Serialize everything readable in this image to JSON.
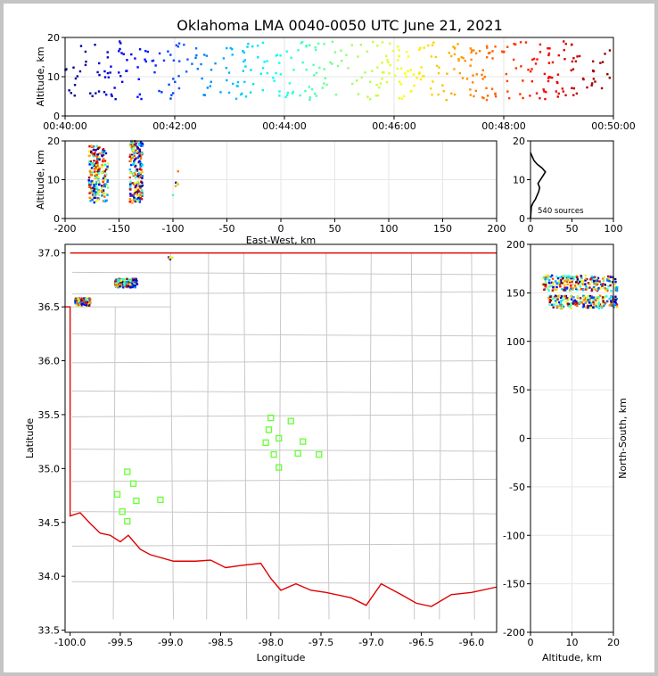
{
  "title": "Oklahoma LMA 0040-0050 UTC June 21, 2021",
  "source_count_label": "540 sources",
  "chart_data": [
    {
      "id": "time_height",
      "type": "scatter",
      "xlabel": "",
      "ylabel": "Altitude, km",
      "xlim_minutes": [
        40,
        50
      ],
      "ylim": [
        0,
        20
      ],
      "x_ticks": [
        "00:40:00",
        "00:42:00",
        "00:44:00",
        "00:46:00",
        "00:48:00",
        "00:50:00"
      ],
      "y_ticks": [
        0,
        10,
        20
      ],
      "color_encoding": "time"
    },
    {
      "id": "east_west_height",
      "type": "scatter",
      "xlabel": "East-West, km",
      "ylabel": "Altitude, km",
      "xlim": [
        -200,
        200
      ],
      "ylim": [
        0,
        20
      ],
      "x_ticks": [
        -200,
        -150,
        -100,
        -50,
        0,
        50,
        100,
        150,
        200
      ],
      "y_ticks": [
        0,
        10,
        20
      ],
      "clusters": [
        {
          "x_range": [
            -178,
            -168
          ],
          "alt_range": [
            4,
            19
          ]
        },
        {
          "x_range": [
            -166,
            -160
          ],
          "alt_range": [
            4,
            18
          ]
        },
        {
          "x_range": [
            -140,
            -128
          ],
          "alt_range": [
            4,
            20
          ]
        },
        {
          "x_range": [
            -100,
            -95
          ],
          "alt_range": [
            6,
            14
          ]
        }
      ]
    },
    {
      "id": "altitude_histogram",
      "type": "line",
      "xlim": [
        0,
        100
      ],
      "ylim": [
        0,
        20
      ],
      "x_ticks": [
        0,
        50,
        100
      ],
      "y_ticks": [
        0,
        10,
        20
      ],
      "profile": [
        [
          0,
          0
        ],
        [
          1,
          3
        ],
        [
          3,
          4
        ],
        [
          6,
          5
        ],
        [
          8,
          6
        ],
        [
          10,
          7
        ],
        [
          11,
          8
        ],
        [
          9,
          9
        ],
        [
          12,
          10
        ],
        [
          15,
          11
        ],
        [
          18,
          12
        ],
        [
          14,
          13
        ],
        [
          8,
          14
        ],
        [
          4,
          15
        ],
        [
          2,
          16
        ],
        [
          0,
          17
        ]
      ]
    },
    {
      "id": "plan_view",
      "type": "scatter",
      "xlabel": "Longitude",
      "ylabel": "Latitude",
      "xlim": [
        -100.05,
        -95.75
      ],
      "ylim": [
        33.48,
        37.08
      ],
      "x_ticks": [
        -100.0,
        -99.5,
        -99.0,
        -98.5,
        -98.0,
        -97.5,
        -97.0,
        -96.5,
        -96.0
      ],
      "y_ticks": [
        33.5,
        34.0,
        34.5,
        35.0,
        35.5,
        36.0,
        36.5,
        37.0
      ],
      "stations": [
        [
          -98.0,
          35.47
        ],
        [
          -97.8,
          35.44
        ],
        [
          -98.02,
          35.36
        ],
        [
          -97.92,
          35.28
        ],
        [
          -98.05,
          35.24
        ],
        [
          -97.68,
          35.25
        ],
        [
          -97.97,
          35.13
        ],
        [
          -97.73,
          35.14
        ],
        [
          -97.52,
          35.13
        ],
        [
          -97.92,
          35.01
        ],
        [
          -99.43,
          34.97
        ],
        [
          -99.37,
          34.86
        ],
        [
          -99.53,
          34.76
        ],
        [
          -99.34,
          34.7
        ],
        [
          -99.1,
          34.71
        ],
        [
          -99.48,
          34.6
        ],
        [
          -99.43,
          34.51
        ]
      ],
      "source_clusters": [
        {
          "lon_range": [
            -99.95,
            -99.8
          ],
          "lat_range": [
            36.51,
            36.58
          ]
        },
        {
          "lon_range": [
            -99.55,
            -99.33
          ],
          "lat_range": [
            36.68,
            36.76
          ]
        },
        {
          "lon_range": [
            -99.02,
            -98.98
          ],
          "lat_range": [
            36.94,
            36.96
          ]
        }
      ]
    },
    {
      "id": "altitude_north_south",
      "type": "scatter",
      "xlabel": "Altitude, km",
      "ylabel": "North-South, km",
      "xlim": [
        0,
        20
      ],
      "ylim": [
        -200,
        200
      ],
      "x_ticks": [
        0,
        10,
        20
      ],
      "y_ticks": [
        -200,
        -150,
        -100,
        -50,
        0,
        50,
        100,
        150,
        200
      ],
      "clusters": [
        {
          "ns_range": [
            134,
            147
          ],
          "alt_range": [
            4,
            21
          ]
        },
        {
          "ns_range": [
            152,
            168
          ],
          "alt_range": [
            3,
            21
          ]
        }
      ]
    }
  ]
}
